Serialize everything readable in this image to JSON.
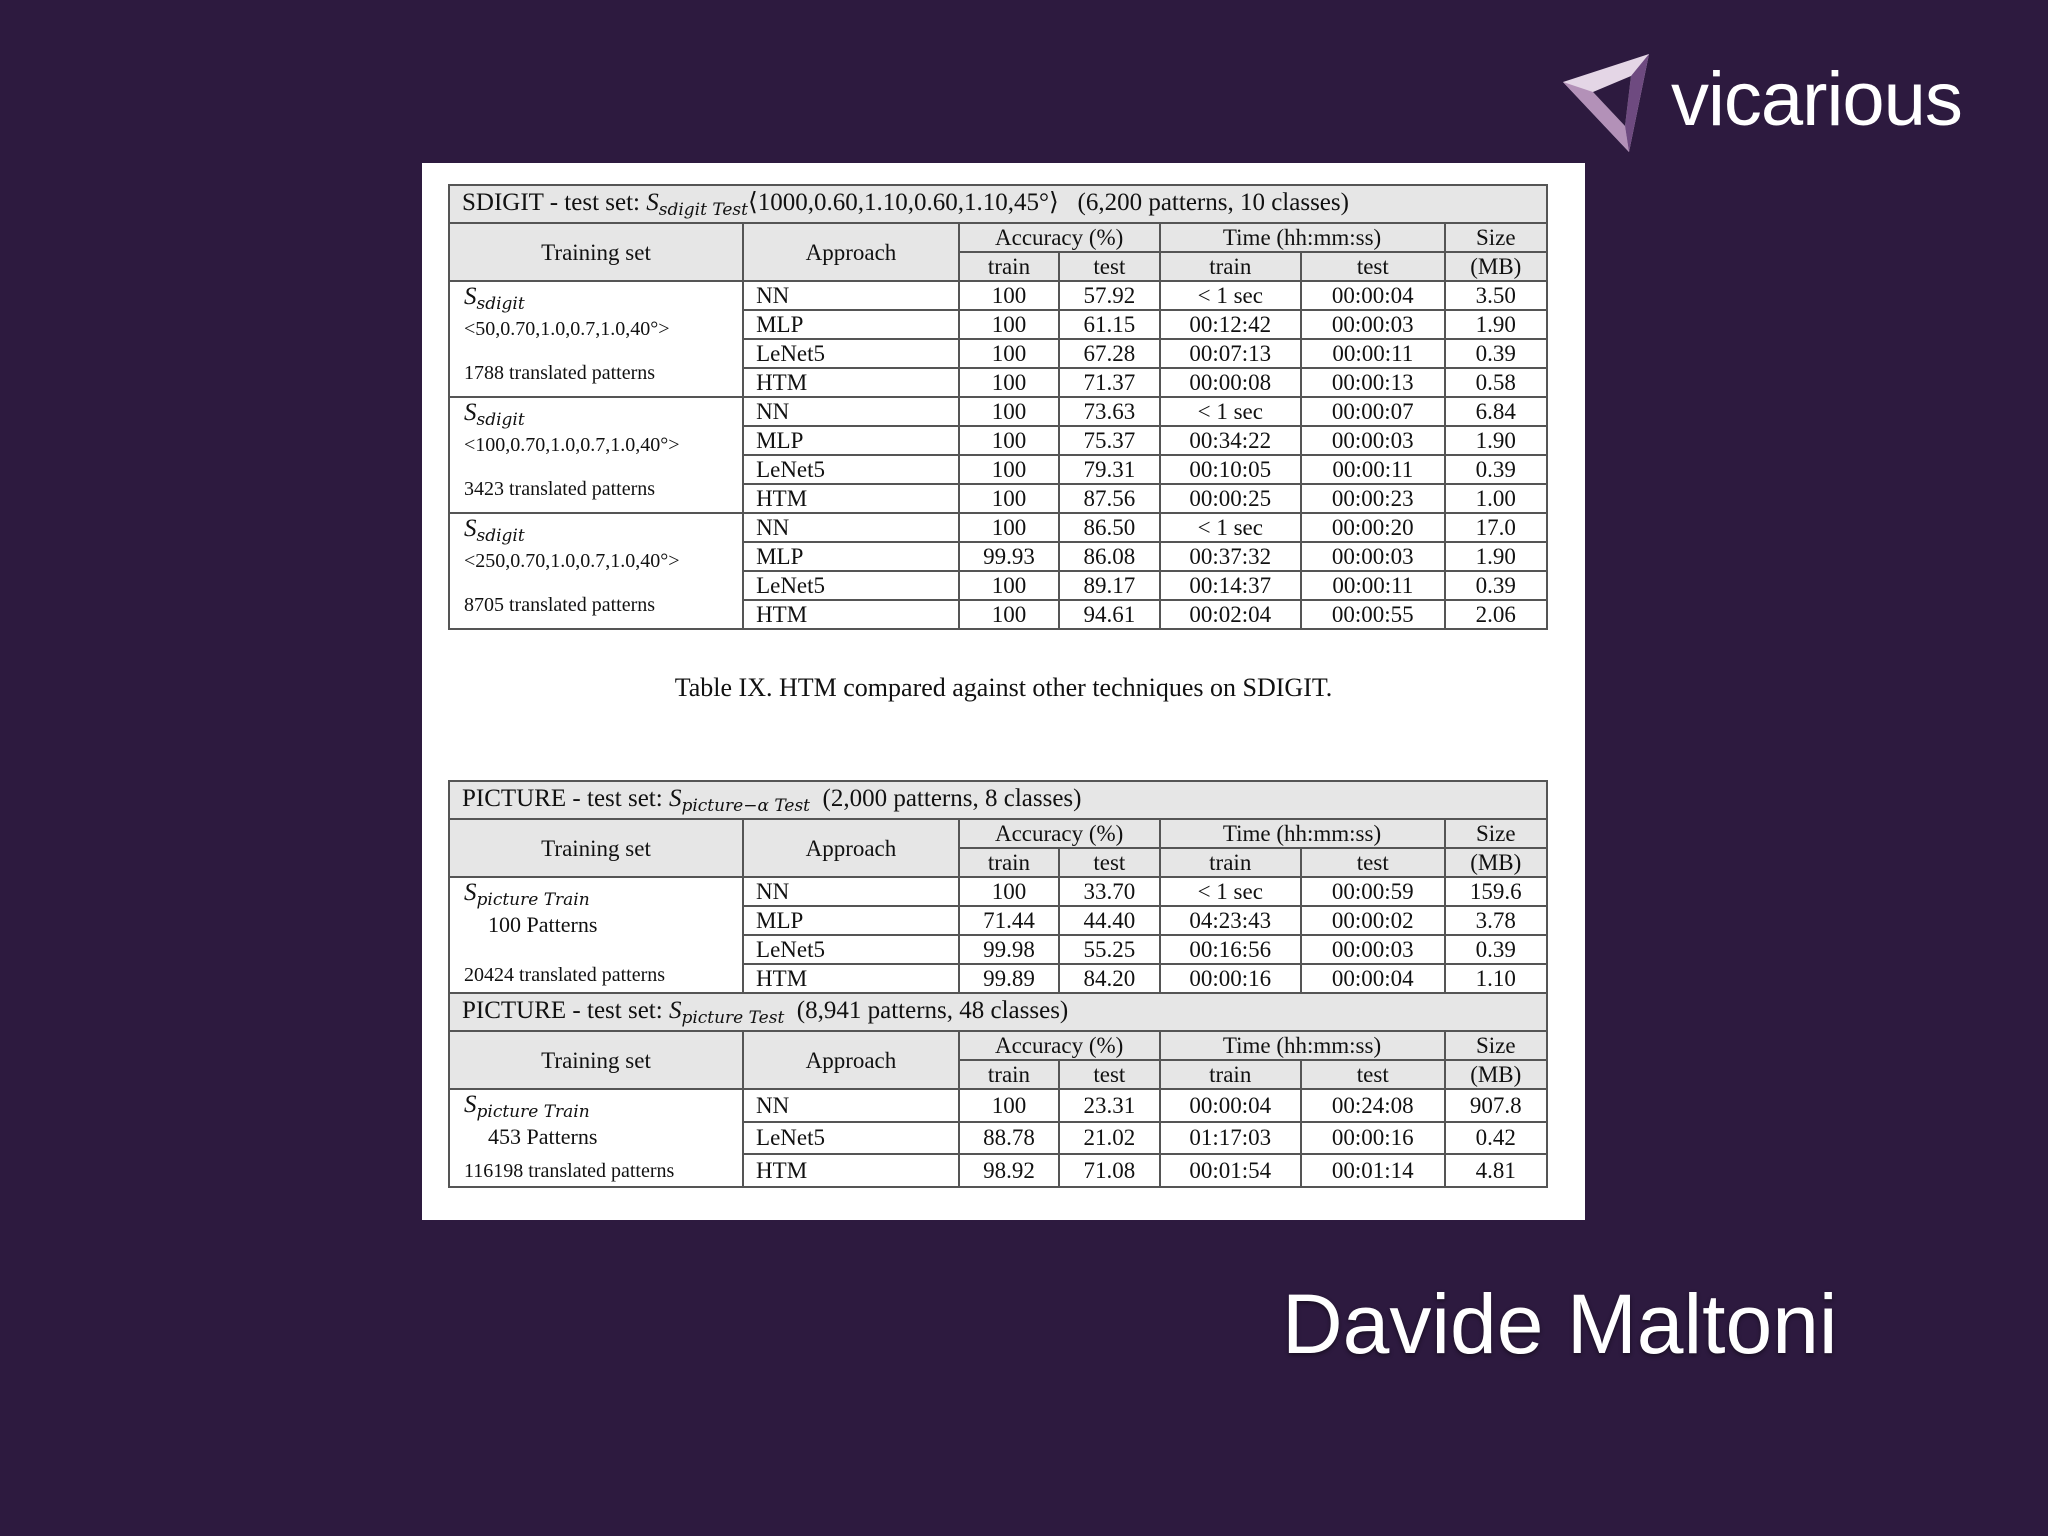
{
  "brand": {
    "name": "vicarious",
    "logo_colors": [
      "#e4d6e6",
      "#b391b8",
      "#6e4a80"
    ]
  },
  "author": "Davide Maltoni",
  "sdigit": {
    "title_prefix": "SDIGIT - test set: ",
    "title_sym": "S",
    "title_sub": "sdigit Test",
    "title_params": "⟨1000,0.60,1.10,0.60,1.10,45°⟩",
    "title_info": "(6,200 patterns, 10 classes)",
    "headers": {
      "training_set": "Training set",
      "approach": "Approach",
      "accuracy": "Accuracy (%)",
      "time": "Time (hh:mm:ss)",
      "size": "Size",
      "size_unit": "(MB)",
      "train": "train",
      "test": "test"
    },
    "groups": [
      {
        "sym": "S",
        "sub": "sdigit",
        "config": "<50,0.70,1.0,0.7,1.0,40°>",
        "patterns": "1788 translated patterns",
        "rows": [
          {
            "approach": "NN",
            "acc_train": "100",
            "acc_test": "57.92",
            "time_train": "< 1 sec",
            "time_test": "00:00:04",
            "size": "3.50"
          },
          {
            "approach": "MLP",
            "acc_train": "100",
            "acc_test": "61.15",
            "time_train": "00:12:42",
            "time_test": "00:00:03",
            "size": "1.90"
          },
          {
            "approach": "LeNet5",
            "acc_train": "100",
            "acc_test": "67.28",
            "time_train": "00:07:13",
            "time_test": "00:00:11",
            "size": "0.39"
          },
          {
            "approach": "HTM",
            "acc_train": "100",
            "acc_test": "71.37",
            "time_train": "00:00:08",
            "time_test": "00:00:13",
            "size": "0.58"
          }
        ]
      },
      {
        "sym": "S",
        "sub": "sdigit",
        "config": "<100,0.70,1.0,0.7,1.0,40°>",
        "patterns": "3423 translated patterns",
        "rows": [
          {
            "approach": "NN",
            "acc_train": "100",
            "acc_test": "73.63",
            "time_train": "< 1 sec",
            "time_test": "00:00:07",
            "size": "6.84"
          },
          {
            "approach": "MLP",
            "acc_train": "100",
            "acc_test": "75.37",
            "time_train": "00:34:22",
            "time_test": "00:00:03",
            "size": "1.90"
          },
          {
            "approach": "LeNet5",
            "acc_train": "100",
            "acc_test": "79.31",
            "time_train": "00:10:05",
            "time_test": "00:00:11",
            "size": "0.39"
          },
          {
            "approach": "HTM",
            "acc_train": "100",
            "acc_test": "87.56",
            "time_train": "00:00:25",
            "time_test": "00:00:23",
            "size": "1.00"
          }
        ]
      },
      {
        "sym": "S",
        "sub": "sdigit",
        "config": "<250,0.70,1.0,0.7,1.0,40°>",
        "patterns": "8705 translated patterns",
        "rows": [
          {
            "approach": "NN",
            "acc_train": "100",
            "acc_test": "86.50",
            "time_train": "< 1 sec",
            "time_test": "00:00:20",
            "size": "17.0"
          },
          {
            "approach": "MLP",
            "acc_train": "99.93",
            "acc_test": "86.08",
            "time_train": "00:37:32",
            "time_test": "00:00:03",
            "size": "1.90"
          },
          {
            "approach": "LeNet5",
            "acc_train": "100",
            "acc_test": "89.17",
            "time_train": "00:14:37",
            "time_test": "00:00:11",
            "size": "0.39"
          },
          {
            "approach": "HTM",
            "acc_train": "100",
            "acc_test": "94.61",
            "time_train": "00:02:04",
            "time_test": "00:00:55",
            "size": "2.06"
          }
        ]
      }
    ],
    "caption": "Table IX. HTM compared against other techniques on SDIGIT."
  },
  "picture_a": {
    "title_prefix": "PICTURE - test set: ",
    "title_sym": "S",
    "title_sub": "picture−α Test",
    "title_info": "(2,000 patterns, 8 classes)",
    "headers": {
      "training_set": "Training set",
      "approach": "Approach",
      "accuracy": "Accuracy (%)",
      "time": "Time (hh:mm:ss)",
      "size": "Size",
      "size_unit": "(MB)",
      "train": "train",
      "test": "test"
    },
    "group": {
      "sym": "S",
      "sub": "picture Train",
      "count": "100 Patterns",
      "patterns": "20424 translated patterns",
      "rows": [
        {
          "approach": "NN",
          "acc_train": "100",
          "acc_test": "33.70",
          "time_train": "< 1 sec",
          "time_test": "00:00:59",
          "size": "159.6"
        },
        {
          "approach": "MLP",
          "acc_train": "71.44",
          "acc_test": "44.40",
          "time_train": "04:23:43",
          "time_test": "00:00:02",
          "size": "3.78"
        },
        {
          "approach": "LeNet5",
          "acc_train": "99.98",
          "acc_test": "55.25",
          "time_train": "00:16:56",
          "time_test": "00:00:03",
          "size": "0.39"
        },
        {
          "approach": "HTM",
          "acc_train": "99.89",
          "acc_test": "84.20",
          "time_train": "00:00:16",
          "time_test": "00:00:04",
          "size": "1.10"
        }
      ]
    }
  },
  "picture_b": {
    "title_prefix": "PICTURE - test set: ",
    "title_sym": "S",
    "title_sub": "picture Test",
    "title_info": "(8,941 patterns, 48 classes)",
    "headers": {
      "training_set": "Training set",
      "approach": "Approach",
      "accuracy": "Accuracy (%)",
      "time": "Time (hh:mm:ss)",
      "size": "Size",
      "size_unit": "(MB)",
      "train": "train",
      "test": "test"
    },
    "group": {
      "sym": "S",
      "sub": "picture Train",
      "count": "453 Patterns",
      "patterns": "116198 translated patterns",
      "rows": [
        {
          "approach": "NN",
          "acc_train": "100",
          "acc_test": "23.31",
          "time_train": "00:00:04",
          "time_test": "00:24:08",
          "size": "907.8"
        },
        {
          "approach": "LeNet5",
          "acc_train": "88.78",
          "acc_test": "21.02",
          "time_train": "01:17:03",
          "time_test": "00:00:16",
          "size": "0.42"
        },
        {
          "approach": "HTM",
          "acc_train": "98.92",
          "acc_test": "71.08",
          "time_train": "00:01:54",
          "time_test": "00:01:14",
          "size": "4.81"
        }
      ]
    }
  }
}
